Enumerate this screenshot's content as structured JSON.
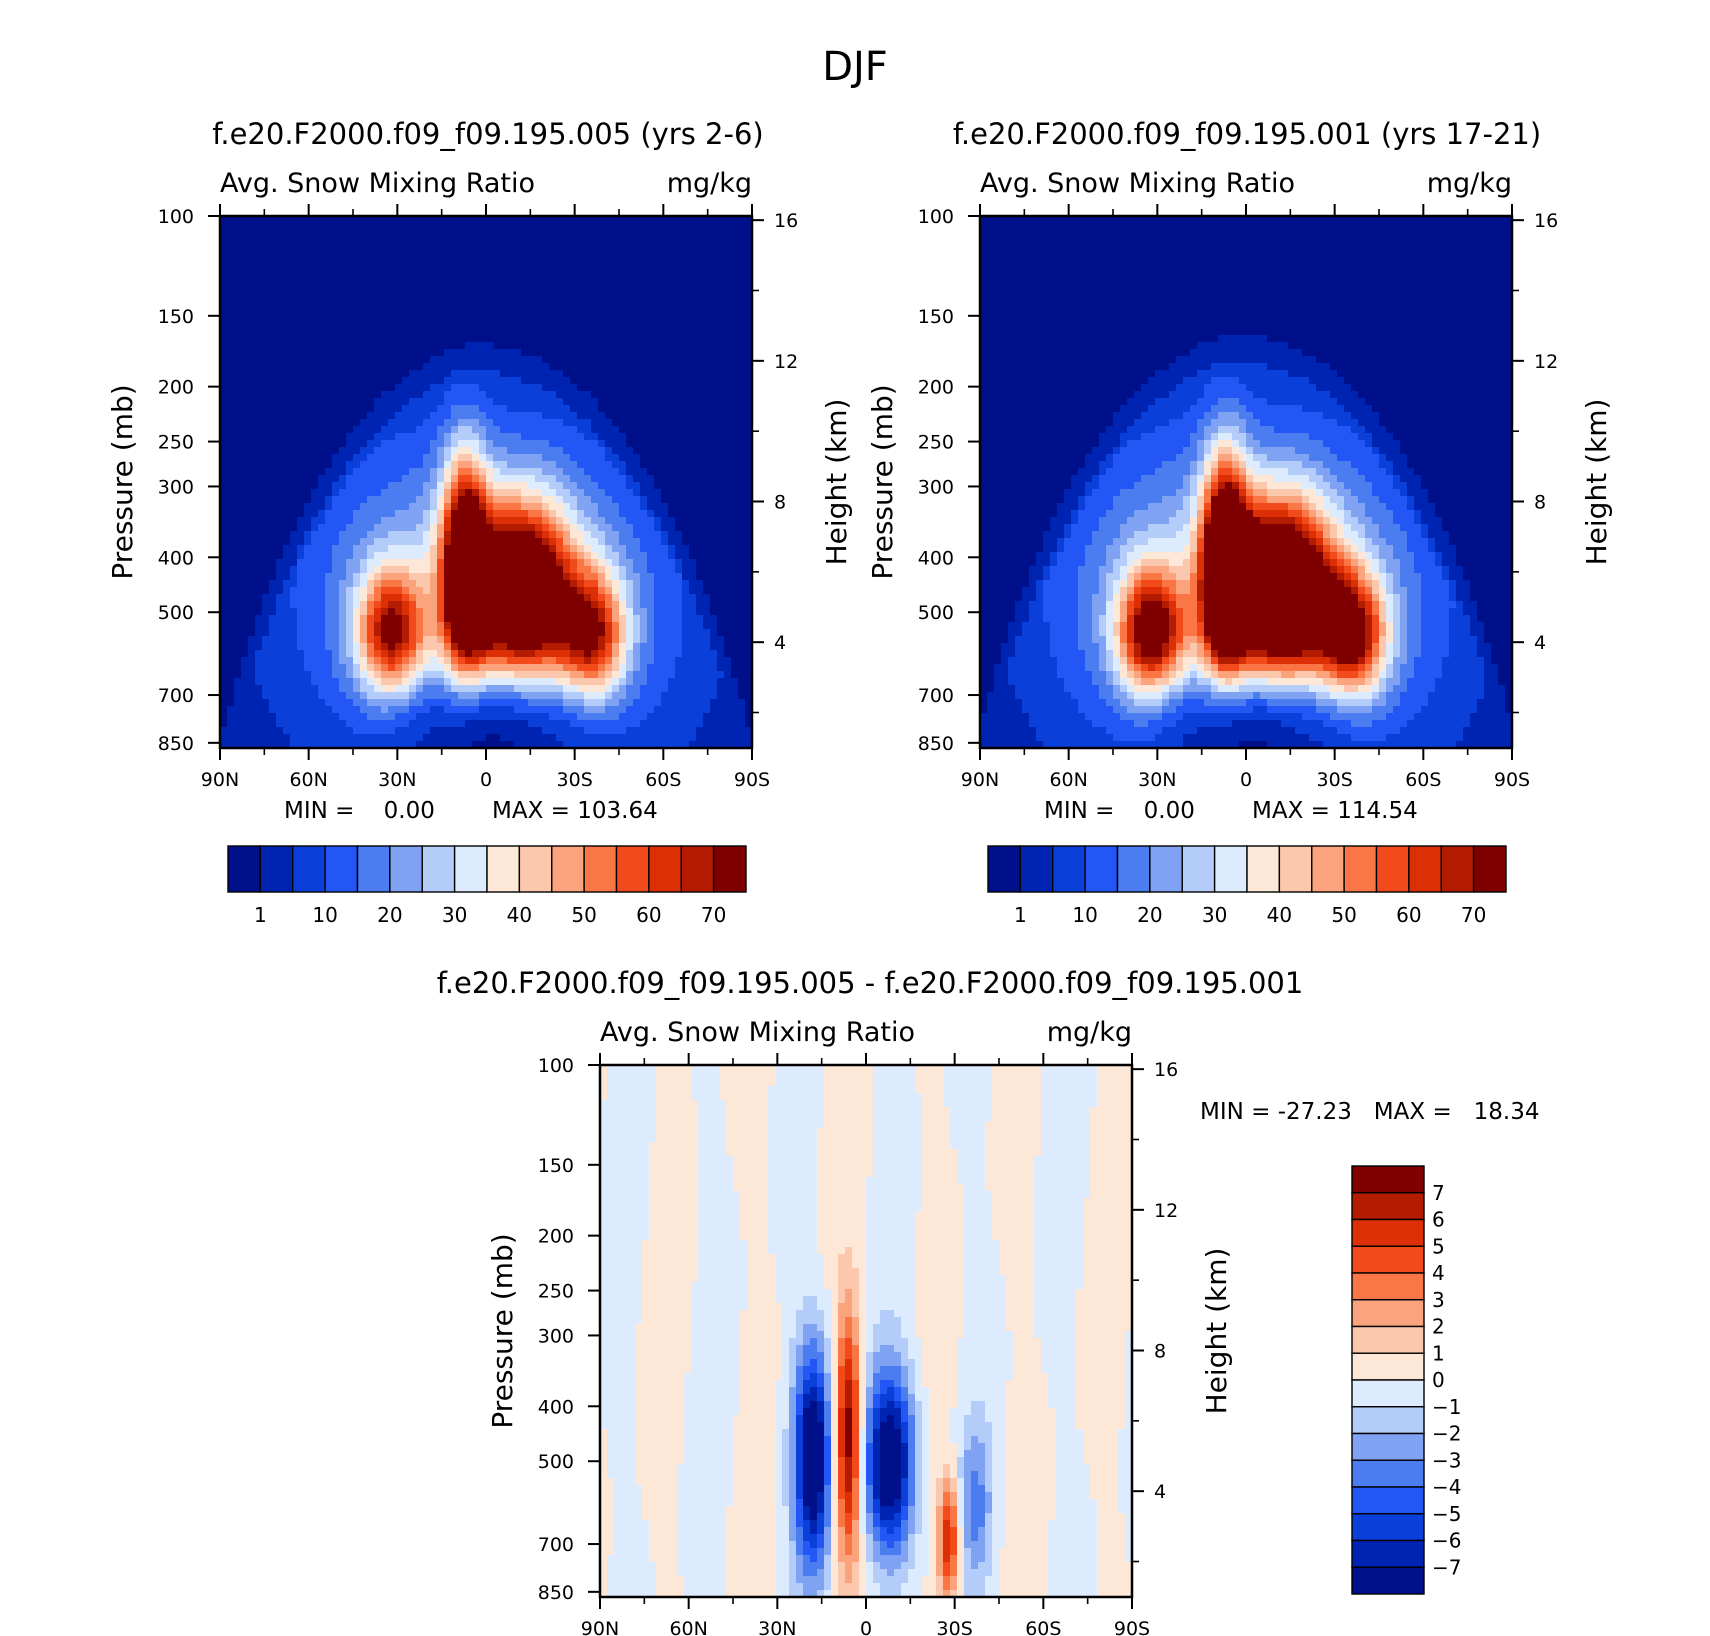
{
  "figure": {
    "title": "DJF"
  },
  "colors": {
    "abs_palette": [
      "#000f8a",
      "#0024b2",
      "#0a3fd9",
      "#2257f5",
      "#4b7cf0",
      "#7fa3f2",
      "#b4ccf9",
      "#dcebfd",
      "#fde8d8",
      "#fcc8ad",
      "#fba37c",
      "#fa7645",
      "#f34a1c",
      "#dc2f05",
      "#b41c02",
      "#7f0000"
    ],
    "diff_palette": [
      "#000f8a",
      "#0024b2",
      "#0a3fd9",
      "#2257f5",
      "#4b7cf0",
      "#7fa3f2",
      "#b4ccf9",
      "#dcebfd",
      "#fde8d8",
      "#fcc8ad",
      "#fba37c",
      "#fa7645",
      "#f34a1c",
      "#dc2f05",
      "#b41c02",
      "#7f0000"
    ]
  },
  "chart_data": [
    {
      "type": "heatmap",
      "title": "f.e20.F2000.f09_f09.195.005 (yrs 2-6)",
      "left_string": "Avg. Snow Mixing Ratio",
      "right_string": "mg/kg",
      "xlabel": "",
      "ylabel": "Pressure (mb)",
      "ylabel_right": "Height (km)",
      "x_ticks": [
        "90N",
        "60N",
        "30N",
        "0",
        "30S",
        "60S",
        "90S"
      ],
      "y_ticks": [
        "100",
        "150",
        "200",
        "250",
        "300",
        "400",
        "500",
        "700",
        "850"
      ],
      "y_ticks_right": [
        "16",
        "12",
        "8",
        "4"
      ],
      "min_text": "MIN =    0.00",
      "max_text": "MAX = 103.64",
      "min": 0.0,
      "max": 103.64,
      "colorbar_labels": [
        "1",
        "10",
        "20",
        "30",
        "40",
        "50",
        "60",
        "70"
      ],
      "model": {
        "peak": 103.64,
        "tropopause_km": 11.5
      }
    },
    {
      "type": "heatmap",
      "title": "f.e20.F2000.f09_f09.195.001 (yrs 17-21)",
      "left_string": "Avg. Snow Mixing Ratio",
      "right_string": "mg/kg",
      "xlabel": "",
      "ylabel": "Pressure (mb)",
      "ylabel_right": "Height (km)",
      "x_ticks": [
        "90N",
        "60N",
        "30N",
        "0",
        "30S",
        "60S",
        "90S"
      ],
      "y_ticks": [
        "100",
        "150",
        "200",
        "250",
        "300",
        "400",
        "500",
        "700",
        "850"
      ],
      "y_ticks_right": [
        "16",
        "12",
        "8",
        "4"
      ],
      "min_text": "MIN =    0.00",
      "max_text": "MAX = 114.54",
      "min": 0.0,
      "max": 114.54,
      "colorbar_labels": [
        "1",
        "10",
        "20",
        "30",
        "40",
        "50",
        "60",
        "70"
      ],
      "model": {
        "peak": 114.54,
        "tropopause_km": 11.8
      }
    },
    {
      "type": "heatmap",
      "title": "f.e20.F2000.f09_f09.195.005 - f.e20.F2000.f09_f09.195.001",
      "left_string": "Avg. Snow Mixing Ratio",
      "right_string": "mg/kg",
      "xlabel": "",
      "ylabel": "Pressure (mb)",
      "ylabel_right": "Height (km)",
      "x_ticks": [
        "90N",
        "60N",
        "30N",
        "0",
        "30S",
        "60S",
        "90S"
      ],
      "y_ticks": [
        "100",
        "150",
        "200",
        "250",
        "300",
        "400",
        "500",
        "700",
        "850"
      ],
      "y_ticks_right": [
        "16",
        "12",
        "8",
        "4"
      ],
      "minmax_text": "MIN = -27.23   MAX =   18.34",
      "min": -27.23,
      "max": 18.34,
      "colorbar_labels": [
        "7",
        "6",
        "5",
        "4",
        "3",
        "2",
        "1",
        "0",
        "-1",
        "-2",
        "-3",
        "-4",
        "-5",
        "-6",
        "-7"
      ]
    }
  ]
}
